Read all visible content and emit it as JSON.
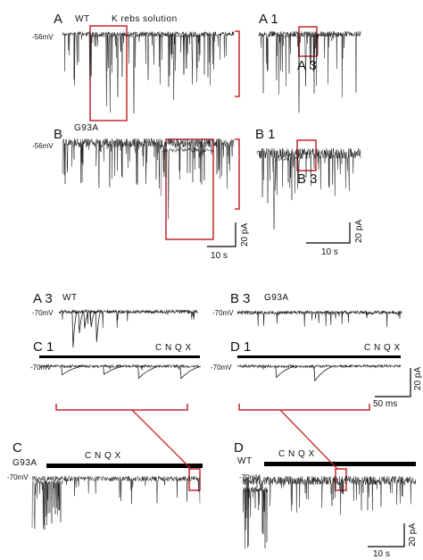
{
  "panels": {
    "A": "A",
    "A1": "A 1",
    "A3_box": "A 3",
    "B": "B",
    "B1": "B 1",
    "B3_box": "B 3",
    "A3": "A 3",
    "B3": "B 3",
    "C1": "C 1",
    "D1": "D 1",
    "C": "C",
    "D": "D"
  },
  "labels": {
    "wt": "WT",
    "krebs": "K rebs   solution",
    "g93a": "G93A",
    "cnqx": "C N Q X",
    "v56": "-56mV",
    "v70": "-70mV"
  },
  "scalebars": {
    "pa20": "20  pA",
    "s10": "10  s",
    "ms50": "50  ms"
  },
  "colors": {
    "trace": "#1a1a1a",
    "highlight": "#c4272b",
    "bar": "#000000"
  }
}
